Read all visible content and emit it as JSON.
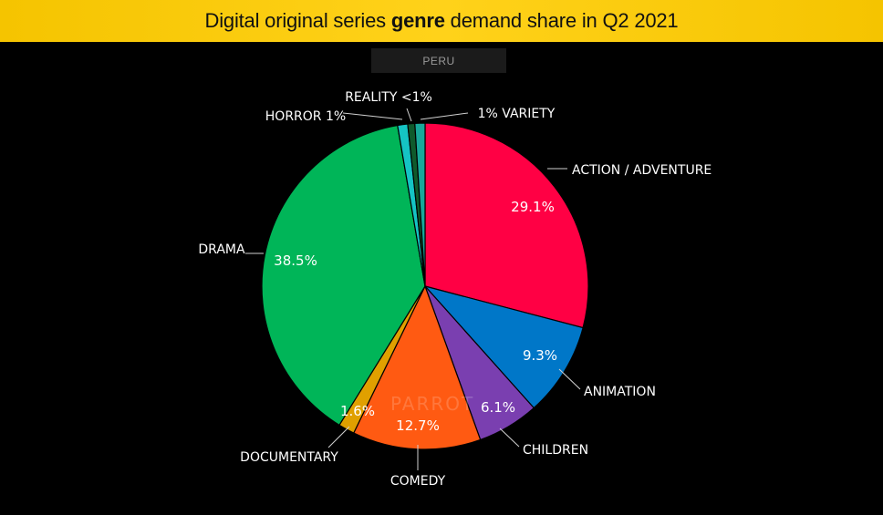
{
  "header": {
    "title_pre": "Digital original series ",
    "title_bold": "genre",
    "title_post": " demand share in Q2 2021"
  },
  "region_label": "PERU",
  "watermark": "PARROT",
  "colors": {
    "header_bg": "#ffd21a",
    "background": "#000000"
  },
  "chart_data": {
    "type": "pie",
    "title": "Digital original series genre demand share in Q2 2021",
    "subtitle": "PERU",
    "slices": [
      {
        "label": "ACTION / ADVENTURE",
        "value": 29.1,
        "value_label": "29.1%",
        "color": "#ff0044"
      },
      {
        "label": "ANIMATION",
        "value": 9.3,
        "value_label": "9.3%",
        "color": "#0077c8"
      },
      {
        "label": "CHILDREN",
        "value": 6.1,
        "value_label": "6.1%",
        "color": "#7a3fb0"
      },
      {
        "label": "COMEDY",
        "value": 12.7,
        "value_label": "12.7%",
        "color": "#ff5a12"
      },
      {
        "label": "DOCUMENTARY",
        "value": 1.6,
        "value_label": "1.6%",
        "color": "#e0a000"
      },
      {
        "label": "DRAMA",
        "value": 38.5,
        "value_label": "38.5%",
        "color": "#00b558"
      },
      {
        "label": "HORROR 1%",
        "value": 1.0,
        "value_label": "",
        "color": "#15c4c4"
      },
      {
        "label": "REALITY <1%",
        "value": 0.7,
        "value_label": "",
        "color": "#0f5a2c"
      },
      {
        "label": "1% VARIETY",
        "value": 1.0,
        "value_label": "",
        "color": "#17a89a"
      }
    ]
  }
}
